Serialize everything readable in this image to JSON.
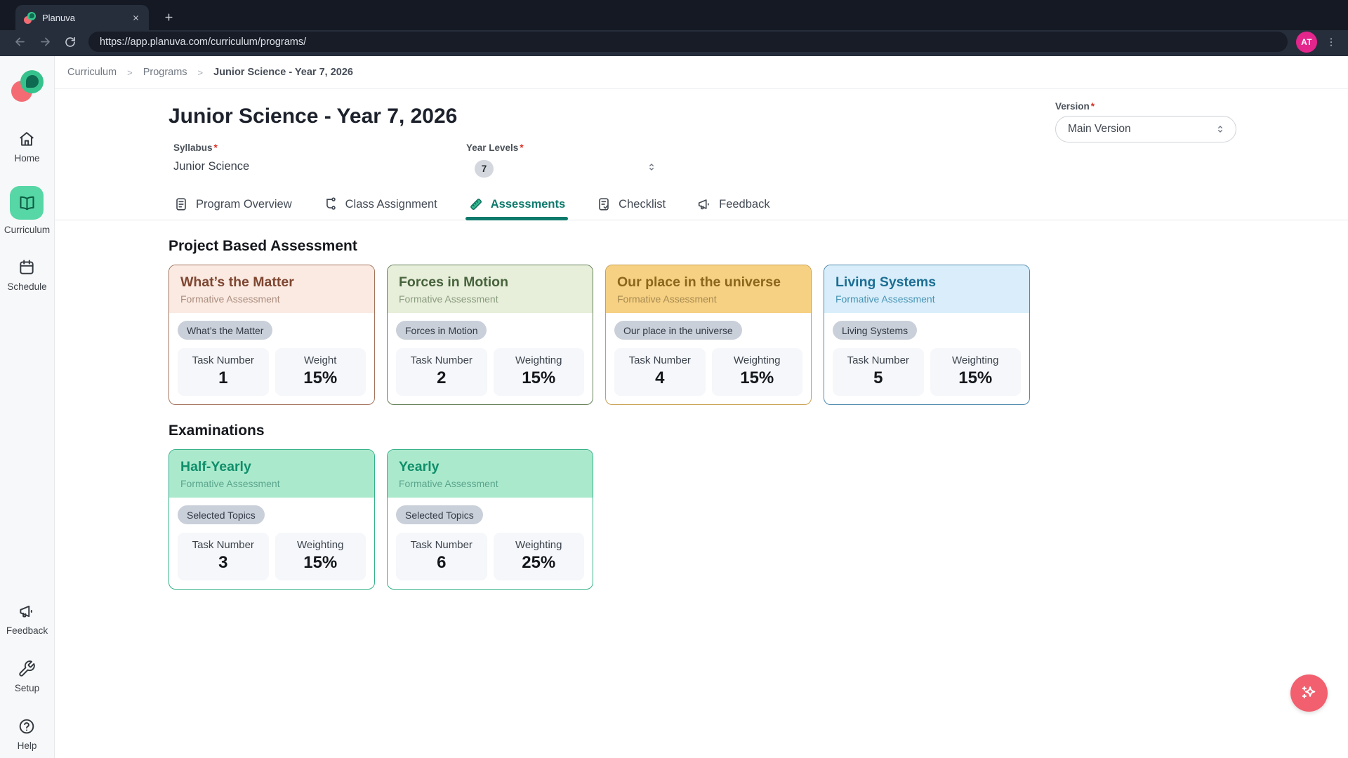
{
  "browser": {
    "tab_title": "Planuva",
    "url": "https://app.planuva.com/curriculum/programs/",
    "avatar_initials": "AT"
  },
  "sidebar": {
    "items": [
      {
        "label": "Home",
        "icon": "home-icon",
        "active": false
      },
      {
        "label": "Curriculum",
        "icon": "book-icon",
        "active": true
      },
      {
        "label": "Schedule",
        "icon": "calendar-icon",
        "active": false
      }
    ],
    "bottom_items": [
      {
        "label": "Feedback",
        "icon": "megaphone-icon",
        "active": false
      },
      {
        "label": "Setup",
        "icon": "wrench-icon",
        "active": false
      },
      {
        "label": "Help",
        "icon": "help-icon",
        "active": false
      }
    ]
  },
  "breadcrumb": [
    "Curriculum",
    "Programs",
    "Junior Science - Year 7, 2026"
  ],
  "page": {
    "title": "Junior Science - Year 7, 2026",
    "version": {
      "label": "Version",
      "required": "*",
      "value": "Main Version"
    },
    "syllabus": {
      "label": "Syllabus",
      "required": "*",
      "value": "Junior Science"
    },
    "year_levels": {
      "label": "Year Levels",
      "required": "*",
      "value": "7"
    }
  },
  "tabs": [
    {
      "label": "Program Overview",
      "icon": "document-icon",
      "active": false
    },
    {
      "label": "Class Assignment",
      "icon": "hierarchy-icon",
      "active": false
    },
    {
      "label": "Assessments",
      "icon": "ruler-icon",
      "active": true
    },
    {
      "label": "Checklist",
      "icon": "checklist-icon",
      "active": false
    },
    {
      "label": "Feedback",
      "icon": "megaphone-icon",
      "active": false
    }
  ],
  "sections": [
    {
      "heading": "Project Based Assessment",
      "cards": [
        {
          "title": "What’s the Matter",
          "subtitle": "Formative Assessment",
          "chip": "What’s the Matter",
          "theme": "rose",
          "stats": [
            {
              "label": "Task Number",
              "value": "1"
            },
            {
              "label": "Weight",
              "value": "15%"
            }
          ]
        },
        {
          "title": "Forces in Motion",
          "subtitle": "Formative Assessment",
          "chip": "Forces in Motion",
          "theme": "green",
          "stats": [
            {
              "label": "Task Number",
              "value": "2"
            },
            {
              "label": "Weighting",
              "value": "15%"
            }
          ]
        },
        {
          "title": "Our place in the universe",
          "subtitle": "Formative Assessment",
          "chip": "Our place in the universe",
          "theme": "amber",
          "stats": [
            {
              "label": "Task Number",
              "value": "4"
            },
            {
              "label": "Weighting",
              "value": "15%"
            }
          ]
        },
        {
          "title": "Living Systems",
          "subtitle": "Formative Assessment",
          "chip": "Living Systems",
          "theme": "blue",
          "stats": [
            {
              "label": "Task Number",
              "value": "5"
            },
            {
              "label": "Weighting",
              "value": "15%"
            }
          ]
        }
      ]
    },
    {
      "heading": "Examinations",
      "cards": [
        {
          "title": "Half-Yearly",
          "subtitle": "Formative Assessment",
          "chip": "Selected Topics",
          "theme": "mint",
          "stats": [
            {
              "label": "Task Number",
              "value": "3"
            },
            {
              "label": "Weighting",
              "value": "15%"
            }
          ]
        },
        {
          "title": "Yearly",
          "subtitle": "Formative Assessment",
          "chip": "Selected Topics",
          "theme": "mint",
          "stats": [
            {
              "label": "Task Number",
              "value": "6"
            },
            {
              "label": "Weighting",
              "value": "25%"
            }
          ]
        }
      ]
    }
  ],
  "colors": {
    "accent_teal": "#0e7a6c",
    "active_nav_green": "#57d7a6",
    "fab_pink": "#f25f6e",
    "avatar_magenta": "#e3258c",
    "required_red": "#d93025"
  }
}
